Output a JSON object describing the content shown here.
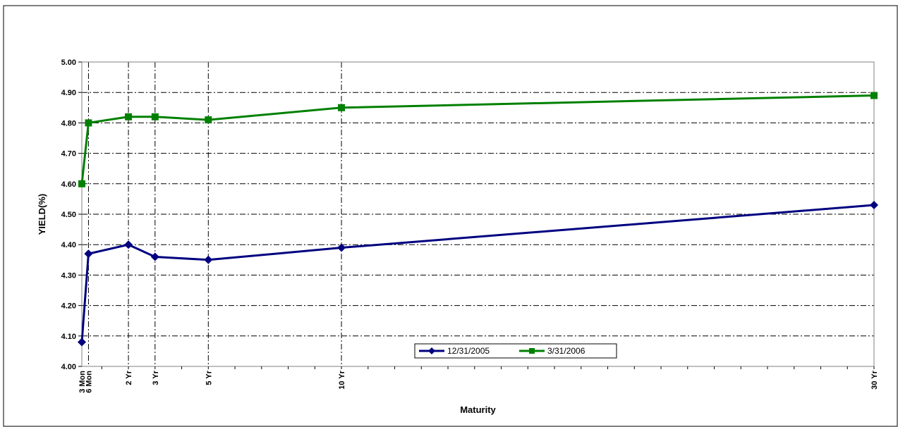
{
  "chart_data": {
    "type": "line",
    "title": "",
    "xlabel": "Maturity",
    "ylabel": "YIELD(%)",
    "ylim": [
      4.0,
      5.0
    ],
    "yticks": [
      "4.00",
      "4.10",
      "4.20",
      "4.30",
      "4.40",
      "4.50",
      "4.60",
      "4.70",
      "4.80",
      "4.90",
      "5.00"
    ],
    "x_years": [
      0.25,
      0.5,
      2,
      3,
      5,
      10,
      30
    ],
    "categories": [
      "3 Mon",
      "6 Mon",
      "2 Yr",
      "3 Yr",
      "5 Yr",
      "10 Yr",
      "30 Yr"
    ],
    "xlim_years": [
      0.25,
      30
    ],
    "grid": true,
    "legend_position": "bottom-center",
    "series": [
      {
        "name": "12/31/2005",
        "color": "#000080",
        "marker": "diamond",
        "values": [
          4.08,
          4.37,
          4.4,
          4.36,
          4.35,
          4.39,
          4.53
        ]
      },
      {
        "name": "3/31/2006",
        "color": "#008000",
        "marker": "square",
        "values": [
          4.6,
          4.8,
          4.82,
          4.82,
          4.81,
          4.85,
          4.89
        ]
      }
    ]
  }
}
